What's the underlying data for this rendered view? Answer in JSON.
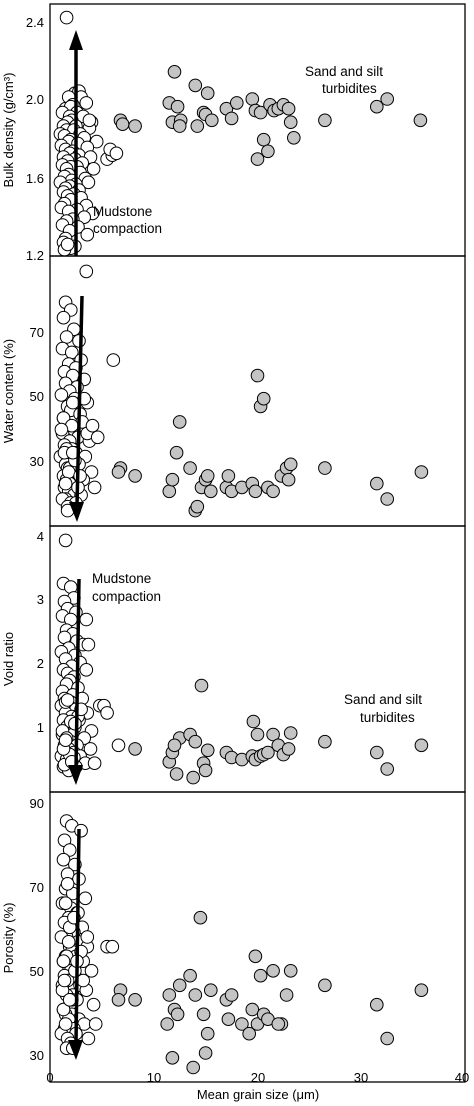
{
  "xaxis": {
    "label": "Mean grain size (μm)",
    "range": [
      0,
      40
    ],
    "ticks": [
      "0",
      "10",
      "20",
      "30",
      "40"
    ]
  },
  "colors": {
    "mudstone": "#ffffff",
    "turbidite": "#c4c4c4",
    "edge": "#000000"
  },
  "chart_data": [
    {
      "type": "scatter",
      "ylabel": "Bulk density (g/cm³)",
      "ylim": [
        1.2,
        2.5
      ],
      "yticks": [
        "1.2",
        "1.6",
        "2.0",
        "2.4"
      ],
      "series": [
        {
          "role": "mudstone",
          "x": [
            1.6,
            2.4,
            2.8,
            3.0,
            1.8,
            2.2,
            3.5,
            1.5,
            2.0,
            2.6,
            1.2,
            1.9,
            3.2,
            2.1,
            1.7,
            4.0,
            1.3,
            2.5,
            3.8,
            1.6,
            2.3,
            1.0,
            2.9,
            1.4,
            3.3,
            2.0,
            1.8,
            4.5,
            2.7,
            1.1,
            3.6,
            1.5,
            2.2,
            1.9,
            2.8,
            1.3,
            3.9,
            2.4,
            1.7,
            3.1,
            1.2,
            2.6,
            2.0,
            1.6,
            4.2,
            5.5,
            2.9,
            1.8,
            1.4,
            3.4,
            2.1,
            1.0,
            2.5,
            1.9,
            3.7,
            1.5,
            2.8,
            1.3,
            2.3,
            1.7,
            3.0,
            6.0,
            2.0,
            1.4,
            3.5,
            1.1,
            2.6,
            1.8,
            4.1,
            3.3,
            2.2,
            1.6,
            1.2,
            5.8,
            2.7,
            1.9,
            3.6,
            1.5,
            6.4,
            1.3,
            2.4,
            2.0,
            1.4,
            1.7,
            3.8
          ],
          "y": [
            2.43,
            2.04,
            2.05,
            2.02,
            2.02,
            1.98,
            1.99,
            1.96,
            1.97,
            1.94,
            1.94,
            1.92,
            1.92,
            1.9,
            1.89,
            1.89,
            1.87,
            1.87,
            1.86,
            1.85,
            1.85,
            1.83,
            1.83,
            1.82,
            1.81,
            1.8,
            1.79,
            1.79,
            1.78,
            1.77,
            1.76,
            1.75,
            1.74,
            1.73,
            1.72,
            1.71,
            1.71,
            1.7,
            1.69,
            1.68,
            1.67,
            1.66,
            1.66,
            1.65,
            1.65,
            1.7,
            1.63,
            1.62,
            1.61,
            1.6,
            1.59,
            1.58,
            1.57,
            1.56,
            1.58,
            1.55,
            1.54,
            1.53,
            1.52,
            1.51,
            1.5,
            1.72,
            1.49,
            1.47,
            1.46,
            1.45,
            1.44,
            1.43,
            1.42,
            1.4,
            1.39,
            1.38,
            1.36,
            1.75,
            1.35,
            1.33,
            1.31,
            1.29,
            1.73,
            1.27,
            1.25,
            1.24,
            1.22,
            1.26,
            1.9
          ]
        },
        {
          "role": "turbidite",
          "x": [
            6.8,
            7.0,
            8.2,
            11.5,
            11.8,
            12.0,
            12.3,
            12.6,
            12.5,
            14.0,
            14.2,
            14.8,
            15.0,
            15.2,
            15.6,
            17.0,
            17.5,
            18.0,
            19.5,
            19.8,
            20.0,
            20.3,
            20.6,
            21.0,
            21.2,
            21.6,
            22.0,
            22.5,
            23.0,
            23.2,
            23.5,
            26.5,
            31.5,
            32.5,
            35.7
          ],
          "y": [
            1.9,
            1.88,
            1.87,
            1.99,
            1.89,
            2.15,
            1.97,
            1.9,
            1.87,
            2.08,
            1.87,
            1.94,
            1.93,
            2.04,
            1.9,
            1.96,
            1.91,
            1.99,
            2.01,
            1.95,
            1.7,
            1.94,
            1.8,
            1.74,
            1.98,
            1.95,
            1.96,
            1.98,
            1.96,
            1.89,
            1.81,
            1.9,
            1.97,
            2.01,
            1.9
          ]
        }
      ],
      "annotations": [
        "Mudstone",
        "compaction",
        "Sand and silt",
        "turbidites"
      ]
    },
    {
      "type": "scatter",
      "ylabel": "Water content (%)",
      "ylim": [
        12,
        82
      ],
      "yticks": [
        "30",
        "50",
        "70"
      ],
      "series": [
        {
          "role": "mudstone",
          "x": [
            3.5,
            1.5,
            2.0,
            1.3,
            2.3,
            1.6,
            2.8,
            1.2,
            2.1,
            3.0,
            1.8,
            2.5,
            1.4,
            2.2,
            3.3,
            1.5,
            2.6,
            1.9,
            1.1,
            2.4,
            3.6,
            1.7,
            2.0,
            2.9,
            1.3,
            3.1,
            1.6,
            2.3,
            1.2,
            2.7,
            1.9,
            3.8,
            1.4,
            2.1,
            2.5,
            1.8,
            1.0,
            3.4,
            2.2,
            1.5,
            2.8,
            1.7,
            2.0,
            4.0,
            1.3,
            2.4,
            1.6,
            3.2,
            2.1,
            1.9,
            4.3,
            1.4,
            2.6,
            1.8,
            2.3,
            3.0,
            1.5,
            1.2,
            2.0,
            2.5,
            1.7,
            3.6,
            1.3,
            2.2,
            1.9,
            2.7,
            4.6,
            1.6,
            2.1,
            3.3,
            1.4,
            2.4,
            1.8,
            2.9,
            1.5,
            6.1,
            2.2,
            4.1,
            1.7,
            1.1
          ],
          "y": [
            78,
            70,
            68,
            66,
            63,
            61,
            60,
            58,
            57,
            55,
            54,
            53,
            52,
            51,
            50,
            49,
            48,
            47,
            46,
            45,
            44,
            43,
            42,
            41,
            40,
            39,
            38,
            37,
            36,
            35,
            34,
            34,
            33,
            32,
            31,
            31,
            30,
            30,
            29,
            28,
            28,
            27,
            26,
            26,
            25,
            25,
            24,
            24,
            23,
            23,
            22,
            22,
            21,
            21,
            20,
            20,
            19,
            19,
            18,
            18,
            17,
            36,
            40,
            44,
            27,
            22,
            35,
            32,
            38,
            45,
            31,
            29,
            26,
            25,
            23,
            55,
            31,
            38,
            16,
            37
          ]
        },
        {
          "role": "turbidite",
          "x": [
            6.8,
            6.6,
            8.2,
            11.5,
            11.8,
            12.2,
            12.5,
            13.5,
            14.0,
            14.2,
            14.6,
            15.0,
            15.2,
            15.5,
            17.0,
            17.2,
            17.5,
            18.5,
            19.5,
            19.8,
            20.0,
            20.3,
            20.6,
            21.0,
            21.5,
            22.3,
            22.8,
            23.2,
            23.0,
            26.5,
            31.5,
            32.5,
            35.8
          ],
          "y": [
            27,
            26,
            25,
            21,
            24,
            31,
            39,
            27,
            16,
            17,
            22,
            24,
            25,
            21,
            22,
            25,
            21,
            22,
            23,
            21,
            51,
            43,
            45,
            22,
            21,
            25,
            27,
            28,
            24,
            27,
            23,
            19,
            26
          ]
        }
      ],
      "annotations": []
    },
    {
      "type": "scatter",
      "ylabel": "Void ratio",
      "ylim": [
        0.3,
        4
      ],
      "yticks": [
        "1",
        "2",
        "3",
        "4"
      ],
      "series": [
        {
          "role": "mudstone",
          "x": [
            1.5,
            1.3,
            2.0,
            2.3,
            1.4,
            1.7,
            2.5,
            1.2,
            2.0,
            3.5,
            1.6,
            2.2,
            1.4,
            2.6,
            3.2,
            1.8,
            1.1,
            2.4,
            1.5,
            2.9,
            2.1,
            1.3,
            3.5,
            1.7,
            2.3,
            1.9,
            1.6,
            2.7,
            1.2,
            2.2,
            3.1,
            1.4,
            2.0,
            1.8,
            1.1,
            2.5,
            1.5,
            3.6,
            2.1,
            1.3,
            2.8,
            1.9,
            1.6,
            2.4,
            4.0,
            1.2,
            2.2,
            3.3,
            1.7,
            2.0,
            1.4,
            2.6,
            1.8,
            3.9,
            1.5,
            2.3,
            1.1,
            2.9,
            1.9,
            1.6,
            3.4,
            2.1,
            4.3,
            1.3,
            2.5,
            1.8,
            1.5,
            2.7,
            4.8,
            1.2,
            2.0,
            3.0,
            1.6,
            2.3,
            5.2,
            1.4,
            6.6,
            1.9,
            2.4,
            1.7,
            1.3,
            3.7,
            5.5,
            2.1,
            1.5
          ],
          "y": [
            3.8,
            3.2,
            3.15,
            3.0,
            2.95,
            2.85,
            2.8,
            2.75,
            2.7,
            2.7,
            2.55,
            2.5,
            2.45,
            2.4,
            2.35,
            2.3,
            2.25,
            2.2,
            2.15,
            2.1,
            2.05,
            2.0,
            2.0,
            1.95,
            1.9,
            1.85,
            1.8,
            1.75,
            1.7,
            1.65,
            1.6,
            1.6,
            1.55,
            1.5,
            1.5,
            1.45,
            1.4,
            1.4,
            1.35,
            1.3,
            1.3,
            1.25,
            1.2,
            1.2,
            1.15,
            1.1,
            1.1,
            1.05,
            1.0,
            1.0,
            0.95,
            0.95,
            0.9,
            0.9,
            0.85,
            0.85,
            0.8,
            0.8,
            0.75,
            0.75,
            0.7,
            0.7,
            0.7,
            0.65,
            0.65,
            0.6,
            1.55,
            1.35,
            1.5,
            1.15,
            1.28,
            1.45,
            1.05,
            0.78,
            1.5,
            0.68,
            0.95,
            0.82,
            1.25,
            1.58,
            0.9,
            2.35,
            1.4,
            0.72,
            1.02
          ],
          "note": ""
        },
        {
          "role": "turbidite",
          "x": [
            8.2,
            11.5,
            11.8,
            12.2,
            12.5,
            12.0,
            13.5,
            13.8,
            14.0,
            14.6,
            14.8,
            15.2,
            15.0,
            17.0,
            17.5,
            18.5,
            19.5,
            19.6,
            19.8,
            20.0,
            20.3,
            20.6,
            21.0,
            21.5,
            22.0,
            22.5,
            23.0,
            23.2,
            26.5,
            31.5,
            32.5,
            35.8
          ],
          "y": [
            0.9,
            0.72,
            0.85,
            0.55,
            1.05,
            0.95,
            1.1,
            0.5,
            1.0,
            1.78,
            0.7,
            0.88,
            0.6,
            0.85,
            0.78,
            0.75,
            0.8,
            1.28,
            0.75,
            1.1,
            0.8,
            0.82,
            0.85,
            1.1,
            0.95,
            0.82,
            0.9,
            1.12,
            1.0,
            0.85,
            0.62,
            0.95
          ]
        }
      ],
      "annotations": [
        "Mudstone",
        "compaction",
        "Sand and silt",
        "turbidites"
      ]
    },
    {
      "type": "scatter",
      "ylabel": "Porosity (%)",
      "ylim": [
        30,
        90
      ],
      "yticks": [
        "30",
        "50",
        "70",
        "90"
      ],
      "series": [
        {
          "role": "mudstone",
          "x": [
            1.6,
            2.1,
            3.0,
            1.4,
            1.9,
            1.3,
            2.4,
            1.7,
            2.8,
            1.5,
            2.2,
            3.4,
            1.2,
            2.0,
            2.6,
            1.8,
            1.4,
            3.1,
            2.3,
            1.6,
            1.1,
            2.7,
            1.9,
            3.6,
            2.1,
            1.5,
            2.5,
            1.3,
            3.2,
            1.8,
            2.0,
            4.0,
            1.4,
            2.4,
            1.7,
            2.9,
            1.2,
            3.5,
            2.2,
            1.6,
            2.6,
            1.9,
            4.2,
            1.3,
            2.1,
            1.5,
            2.8,
            1.8,
            3.3,
            2.3,
            1.4,
            1.1,
            2.5,
            1.7,
            3.7,
            2.0,
            1.6,
            2.2,
            4.4,
            1.3,
            1.9,
            2.7,
            1.5,
            3.0,
            1.8,
            2.4,
            1.2,
            5.5,
            2.1,
            1.6,
            3.6,
            1.4,
            2.3,
            1.7,
            6.0,
            2.6,
            1.9,
            1.3,
            3.2,
            1.5
          ],
          "y": [
            84,
            83,
            82,
            80,
            78,
            76,
            75,
            73,
            72,
            70,
            69,
            68,
            67,
            66,
            65,
            64,
            63,
            62,
            61,
            60,
            60,
            59,
            58,
            58,
            57,
            56,
            56,
            55,
            55,
            54,
            53,
            53,
            52,
            52,
            51,
            50,
            50,
            49,
            48,
            48,
            47,
            46,
            46,
            45,
            44,
            44,
            43,
            43,
            42,
            41,
            41,
            40,
            40,
            39,
            39,
            38,
            37,
            37,
            42,
            45,
            62,
            65,
            67,
            57,
            59,
            53,
            49,
            58,
            47,
            56,
            60,
            51,
            64,
            71,
            58,
            55,
            47,
            55,
            51,
            42
          ]
        },
        {
          "role": "turbidite",
          "x": [
            6.8,
            6.6,
            8.2,
            11.3,
            11.5,
            11.8,
            12.0,
            12.5,
            12.3,
            13.5,
            13.8,
            14.0,
            14.5,
            14.8,
            15.0,
            15.2,
            15.5,
            17.0,
            17.2,
            17.5,
            18.5,
            19.2,
            19.5,
            19.8,
            20.0,
            20.3,
            20.6,
            21.0,
            21.5,
            22.3,
            22.8,
            23.2,
            22.0,
            26.5,
            31.5,
            32.5,
            35.8
          ],
          "y": [
            49,
            47,
            47,
            42,
            48,
            35,
            45,
            50,
            44,
            52,
            33,
            48,
            64,
            44,
            36,
            40,
            49,
            47,
            43,
            48,
            42,
            40,
            45,
            56,
            42,
            52,
            44,
            43,
            53,
            42,
            48,
            53,
            42,
            50,
            46,
            39,
            49
          ]
        }
      ],
      "annotations": []
    }
  ]
}
